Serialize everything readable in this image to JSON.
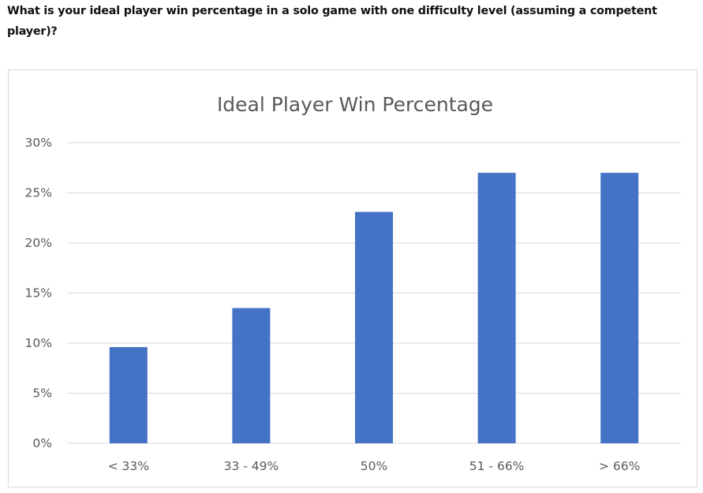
{
  "question": {
    "text": "What is your ideal player win percentage in a solo game with one difficulty level (assuming a competent player)?"
  },
  "colors": {
    "bar": "#4472c4",
    "grid": "#d9d9d9",
    "text": "#595959"
  },
  "chart_data": {
    "type": "bar",
    "title": "Ideal Player Win Percentage",
    "xlabel": "",
    "ylabel": "",
    "categories": [
      "< 33%",
      "33 - 49%",
      "50%",
      "51 - 66%",
      "> 66%"
    ],
    "values": [
      9.6,
      13.5,
      23.1,
      27,
      27
    ],
    "ylim": [
      0,
      30
    ],
    "yticks": [
      0,
      5,
      10,
      15,
      20,
      25,
      30
    ],
    "ytick_labels": [
      "0%",
      "5%",
      "10%",
      "15%",
      "20%",
      "25%",
      "30%"
    ],
    "grid": true,
    "legend": "none"
  }
}
